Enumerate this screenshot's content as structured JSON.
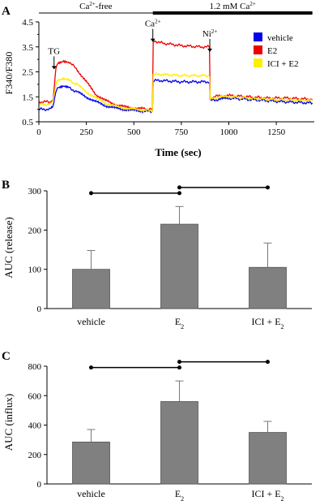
{
  "chart_data": [
    {
      "panel": "A",
      "type": "line",
      "xlabel": "Time (sec)",
      "ylabel": "F340/F380",
      "xlim": [
        0,
        1450
      ],
      "ylim": [
        0.5,
        4.5
      ],
      "xticks": [
        0,
        250,
        500,
        750,
        1000,
        1250
      ],
      "yticks": [
        0.5,
        1.5,
        2.5,
        3.5,
        4.5
      ],
      "yticklabels": [
        "0.5",
        "1.5",
        "2.5",
        "3.5",
        "4.5"
      ],
      "bars": [
        {
          "label": "Ca2+-free",
          "text": "Ca",
          "sup": "2+",
          "suffix": "-free",
          "x_range": [
            0,
            600
          ],
          "style": "thin"
        },
        {
          "label": "1.2 mM Ca2+",
          "text": "1.2 mM Ca",
          "sup": "2+",
          "suffix": "",
          "x_range": [
            600,
            1440
          ],
          "style": "thick"
        }
      ],
      "annotations": [
        {
          "text": "TG",
          "sup": "",
          "x": 80,
          "y_arrow_tip": 2.6
        },
        {
          "text": "Ca",
          "sup": "2+",
          "x": 600,
          "y_arrow_tip": 3.7
        },
        {
          "text": "Ni",
          "sup": "2+",
          "x": 900,
          "y_arrow_tip": 3.3
        }
      ],
      "legend_position": "top-right",
      "series": [
        {
          "name": "vehicle",
          "color": "#0000ee",
          "x": [
            0,
            60,
            75,
            90,
            100,
            130,
            160,
            200,
            250,
            300,
            350,
            400,
            450,
            500,
            550,
            598,
            602,
            650,
            750,
            850,
            898,
            902,
            950,
            1000,
            1100,
            1200,
            1300,
            1440
          ],
          "y": [
            1.0,
            1.0,
            1.1,
            1.7,
            1.85,
            1.9,
            1.85,
            1.7,
            1.5,
            1.3,
            1.15,
            1.05,
            1.0,
            0.95,
            0.93,
            0.92,
            2.15,
            2.15,
            2.1,
            2.1,
            2.1,
            1.35,
            1.4,
            1.45,
            1.4,
            1.35,
            1.3,
            1.25
          ]
        },
        {
          "name": "E2",
          "color": "#ee0000",
          "x": [
            0,
            60,
            75,
            90,
            100,
            130,
            160,
            200,
            250,
            300,
            350,
            400,
            450,
            500,
            550,
            598,
            602,
            650,
            750,
            850,
            898,
            902,
            950,
            1000,
            1100,
            1200,
            1300,
            1440
          ],
          "y": [
            1.3,
            1.3,
            1.4,
            2.7,
            2.85,
            2.95,
            2.9,
            2.6,
            2.1,
            1.6,
            1.35,
            1.2,
            1.1,
            1.05,
            1.02,
            1.0,
            3.75,
            3.65,
            3.55,
            3.5,
            3.5,
            1.45,
            1.55,
            1.55,
            1.5,
            1.45,
            1.45,
            1.4
          ]
        },
        {
          "name": "ICI + E2",
          "color": "#ffee00",
          "x": [
            0,
            60,
            75,
            90,
            100,
            130,
            160,
            200,
            250,
            300,
            350,
            400,
            450,
            500,
            550,
            598,
            602,
            650,
            750,
            850,
            898,
            902,
            950,
            1000,
            1100,
            1200,
            1300,
            1440
          ],
          "y": [
            1.2,
            1.2,
            1.3,
            2.0,
            2.15,
            2.2,
            2.15,
            2.0,
            1.7,
            1.45,
            1.25,
            1.12,
            1.05,
            1.0,
            0.97,
            0.95,
            2.4,
            2.4,
            2.35,
            2.35,
            2.35,
            1.4,
            1.5,
            1.5,
            1.45,
            1.4,
            1.38,
            1.35
          ]
        }
      ]
    },
    {
      "panel": "B",
      "type": "bar",
      "ylabel": "AUC (release)",
      "ylim": [
        0,
        300
      ],
      "yticks": [
        0,
        100,
        200,
        300
      ],
      "categories": [
        {
          "text": "vehicle",
          "sub": ""
        },
        {
          "text": "E",
          "sub": "2"
        },
        {
          "text": "ICI + E",
          "sub": "2"
        }
      ],
      "values": [
        100,
        215,
        105
      ],
      "errors": [
        48,
        45,
        62
      ],
      "bar_color": "#808080",
      "significance": [
        [
          0,
          1
        ],
        [
          1,
          2
        ]
      ]
    },
    {
      "panel": "C",
      "type": "bar",
      "ylabel": "AUC (influx)",
      "ylim": [
        0,
        800
      ],
      "yticks": [
        0,
        200,
        400,
        600,
        800
      ],
      "categories": [
        {
          "text": "vehicle",
          "sub": ""
        },
        {
          "text": "E",
          "sub": "2"
        },
        {
          "text": "ICI + E",
          "sub": "2"
        }
      ],
      "values": [
        285,
        560,
        350
      ],
      "errors": [
        85,
        140,
        75
      ],
      "bar_color": "#808080",
      "significance": [
        [
          0,
          1
        ],
        [
          1,
          2
        ]
      ]
    }
  ]
}
